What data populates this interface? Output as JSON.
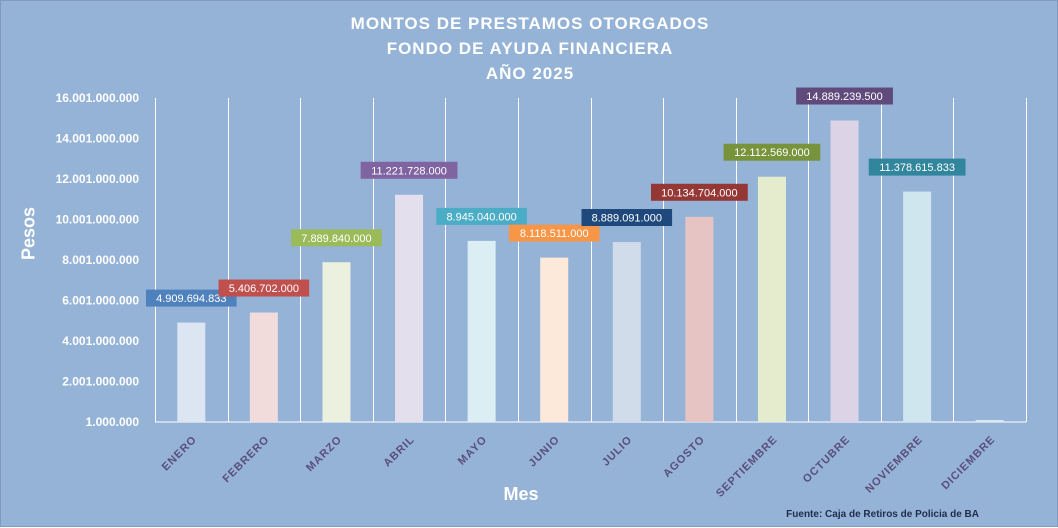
{
  "chart_data": {
    "type": "bar",
    "title_lines": [
      "MONTOS  DE  PRESTAMOS  OTORGADOS",
      "FONDO DE AYUDA FINANCIERA",
      "AÑO  2025"
    ],
    "xlabel": "Mes",
    "ylabel": "Pesos",
    "source": "Fuente: Caja de Retiros de Policia de BA",
    "ylim": [
      1000000,
      16001000000
    ],
    "yticks": [
      1000000,
      2001000000,
      4001000000,
      6001000000,
      8001000000,
      10001000000,
      12001000000,
      14001000000,
      16001000000
    ],
    "ytick_labels": [
      "1.000.000",
      "2.001.000.000",
      "4.001.000.000",
      "6.001.000.000",
      "8.001.000.000",
      "10.001.000.000",
      "12.001.000.000",
      "14.001.000.000",
      "16.001.000.000"
    ],
    "grid": true,
    "categories": [
      "ENERO",
      "FEBRERO",
      "MARZO",
      "ABRIL",
      "MAYO",
      "JUNIO",
      "JULIO",
      "AGOSTO",
      "SEPTIEMBRE",
      "OCTUBRE",
      "NOVIEMBRE",
      "DICIEMBRE"
    ],
    "values": [
      4909694833,
      5406702000,
      7889840000,
      11221728000,
      8945040000,
      8118511000,
      8889091000,
      10134704000,
      12112569000,
      14889239500,
      11378615833,
      0
    ],
    "data_labels": [
      "4.909.694.833",
      "5.406.702.000",
      "7.889.840.000",
      "11.221.728.000",
      "8.945.040.000",
      "8.118.511.000",
      "8.889.091.000",
      "10.134.704.000",
      "12.112.569.000",
      "14.889.239.500",
      "11.378.615.833",
      ""
    ],
    "bar_colors": [
      "#dce6f2",
      "#f2dcdb",
      "#ebf1de",
      "#e4dfec",
      "#dbeef4",
      "#fde9d9",
      "#d0dcea",
      "#e6c4c4",
      "#e4eccd",
      "#dcd4e6",
      "#cfe6ef",
      "#dce6f2"
    ],
    "label_colors": [
      "#4f81bd",
      "#c0504d",
      "#9bbb59",
      "#8064a2",
      "#4bacc6",
      "#f79646",
      "#1f497d",
      "#953735",
      "#77933c",
      "#604a7b",
      "#31859c",
      "#4f81bd"
    ]
  }
}
